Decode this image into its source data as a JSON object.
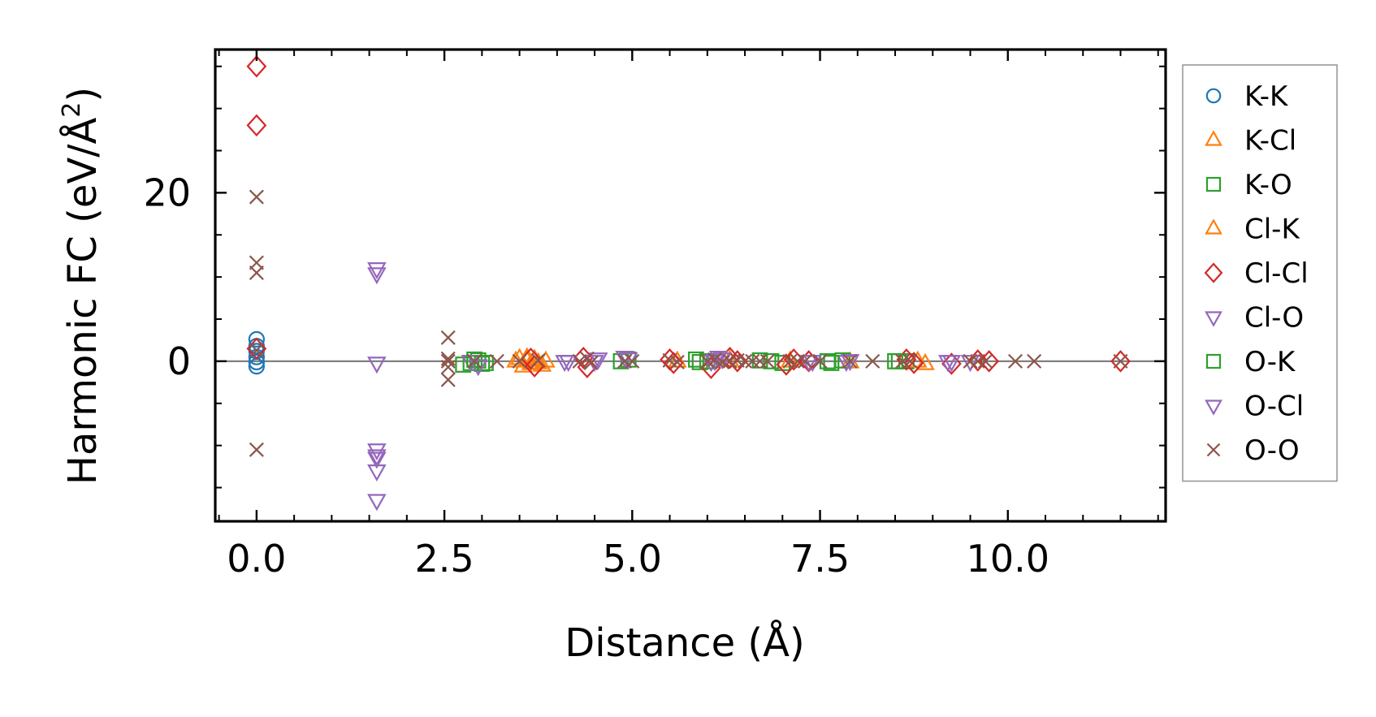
{
  "chart_data": {
    "type": "scatter",
    "title": "",
    "xlabel": "Distance (Å)",
    "ylabel_main": "Harmonic FC (eV/Å",
    "ylabel_sup": "2",
    "ylabel_close": ")",
    "xlim": [
      -0.55,
      12.1
    ],
    "ylim": [
      -19,
      37
    ],
    "xticks": [
      0.0,
      2.5,
      5.0,
      7.5,
      10.0
    ],
    "xtick_labels": [
      "0.0",
      "2.5",
      "5.0",
      "7.5",
      "10.0"
    ],
    "xminor_step": 0.5,
    "yticks": [
      0,
      20
    ],
    "ytick_labels": [
      "0",
      "20"
    ],
    "yminor_step": 5,
    "zero_line": true,
    "grid": false,
    "legend_position": "right-outside",
    "series": [
      {
        "name": "K-K",
        "marker": "circle",
        "color": "#1f77b4",
        "x": [
          0.0,
          0.0,
          0.0,
          0.0,
          0.0,
          0.0
        ],
        "y": [
          2.6,
          1.8,
          1.2,
          0.5,
          -0.1,
          -0.6
        ]
      },
      {
        "name": "K-Cl",
        "marker": "triangle-up",
        "color": "#ff7f0e",
        "x": [
          3.5,
          3.55,
          3.6,
          3.65,
          3.7,
          3.8,
          3.85,
          5.6,
          6.3,
          7.1,
          7.9,
          8.9
        ],
        "y": [
          0.3,
          -0.6,
          0.1,
          -0.3,
          0.2,
          -0.5,
          0.0,
          0.0,
          0.1,
          0.0,
          -0.1,
          -0.3
        ]
      },
      {
        "name": "K-O",
        "marker": "square",
        "color": "#2ca02c",
        "x": [
          2.75,
          2.85,
          2.95,
          3.05,
          4.85,
          4.95,
          5.9,
          6.0,
          6.7,
          6.85,
          7.0,
          7.6,
          7.8,
          8.55,
          8.65
        ],
        "y": [
          -0.4,
          -0.2,
          0.1,
          -0.2,
          0.0,
          0.2,
          -0.1,
          0.0,
          0.1,
          0.0,
          -0.2,
          0.0,
          0.1,
          0.0,
          0.0
        ]
      },
      {
        "name": "Cl-K",
        "marker": "triangle-up",
        "color": "#ff7f0e",
        "x": [
          3.45,
          3.6,
          3.75,
          8.8
        ],
        "y": [
          0.0,
          0.4,
          -0.2,
          0.0
        ]
      },
      {
        "name": "Cl-Cl",
        "marker": "diamond",
        "color": "#d62728",
        "x": [
          0.0,
          0.0,
          0.0,
          3.65,
          3.7,
          4.35,
          4.4,
          5.5,
          5.55,
          6.05,
          6.3,
          6.4,
          7.05,
          7.15,
          7.35,
          8.65,
          8.75,
          9.25,
          9.6,
          9.75,
          11.5
        ],
        "y": [
          35,
          28,
          1.5,
          0.3,
          -0.6,
          0.4,
          -0.7,
          0.2,
          -0.2,
          -0.8,
          0.4,
          0.0,
          -0.4,
          0.2,
          0.0,
          0.2,
          -0.2,
          -0.3,
          0.1,
          0.0,
          0.0
        ]
      },
      {
        "name": "Cl-O",
        "marker": "triangle-down",
        "color": "#9467bd",
        "x": [
          1.6,
          1.6,
          1.6,
          1.6,
          1.6,
          1.6,
          1.6,
          1.6,
          2.85,
          4.15,
          4.55,
          4.9,
          6.05,
          6.2,
          7.35,
          7.85,
          9.2
        ],
        "y": [
          11,
          10.4,
          -0.2,
          -10.5,
          -11.2,
          -13,
          -16.5,
          -11.5,
          0.0,
          0.0,
          0.3,
          0.5,
          0.0,
          0.3,
          0.0,
          0.0,
          0.0
        ]
      },
      {
        "name": "O-K",
        "marker": "square",
        "color": "#2ca02c",
        "x": [
          2.9,
          3.0,
          5.85,
          7.65,
          8.5
        ],
        "y": [
          0.2,
          -0.3,
          0.2,
          -0.2,
          0.0
        ]
      },
      {
        "name": "O-Cl",
        "marker": "triangle-down",
        "color": "#9467bd",
        "x": [
          2.95,
          4.1,
          4.5,
          4.95,
          6.1,
          6.15,
          7.4,
          7.9,
          9.25,
          9.5
        ],
        "y": [
          -0.5,
          0.0,
          0.0,
          0.3,
          0.1,
          0.5,
          0.0,
          0.1,
          0.0,
          0.0
        ]
      },
      {
        "name": "O-O",
        "marker": "x",
        "color": "#8c564b",
        "x": [
          0.0,
          0.0,
          0.0,
          0.0,
          0.0,
          2.55,
          2.55,
          2.55,
          2.55,
          2.55,
          2.9,
          3.2,
          3.5,
          3.75,
          4.3,
          4.4,
          4.45,
          4.9,
          5.0,
          5.5,
          5.6,
          6.0,
          6.1,
          6.2,
          6.3,
          6.4,
          6.5,
          6.6,
          6.7,
          6.8,
          7.1,
          7.2,
          7.3,
          7.5,
          7.9,
          8.2,
          8.6,
          8.7,
          9.5,
          9.6,
          9.7,
          10.1,
          10.35,
          11.5
        ],
        "y": [
          19.5,
          11.7,
          10.5,
          1.3,
          -10.5,
          2.8,
          0.3,
          0.0,
          -0.7,
          -2.2,
          0.0,
          0.0,
          0.0,
          0.1,
          0.0,
          0.3,
          -0.2,
          0.0,
          0.0,
          0.1,
          -0.1,
          0.0,
          0.2,
          -0.1,
          0.0,
          0.1,
          0.0,
          0.0,
          0.0,
          0.0,
          0.0,
          0.0,
          0.0,
          0.0,
          0.0,
          0.0,
          0.0,
          0.0,
          0.0,
          0.0,
          0.0,
          0.0,
          0.0,
          0.0
        ]
      }
    ]
  }
}
